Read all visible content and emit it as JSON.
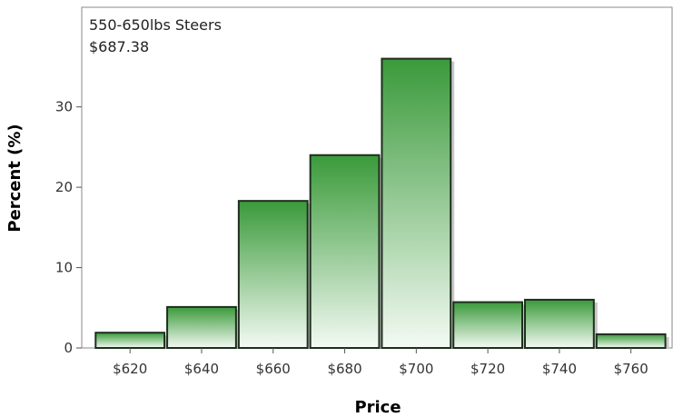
{
  "chart_data": {
    "type": "bar",
    "subtype": "histogram",
    "title": "",
    "xlabel": "Price",
    "ylabel": "Percent (%)",
    "inset": {
      "line1": "550-650lbs Steers",
      "line2": "$687.38"
    },
    "bins": [
      {
        "from": 610,
        "to": 630,
        "value": 1.9
      },
      {
        "from": 630,
        "to": 650,
        "value": 5.1
      },
      {
        "from": 650,
        "to": 670,
        "value": 18.3
      },
      {
        "from": 670,
        "to": 690,
        "value": 24.0
      },
      {
        "from": 690,
        "to": 710,
        "value": 36.0
      },
      {
        "from": 710,
        "to": 730,
        "value": 5.7
      },
      {
        "from": 730,
        "to": 750,
        "value": 6.0
      },
      {
        "from": 750,
        "to": 770,
        "value": 1.7
      }
    ],
    "x_ticks": [
      {
        "value": 620,
        "label": "$620"
      },
      {
        "value": 640,
        "label": "$640"
      },
      {
        "value": 660,
        "label": "$660"
      },
      {
        "value": 680,
        "label": "$680"
      },
      {
        "value": 700,
        "label": "$700"
      },
      {
        "value": 720,
        "label": "$720"
      },
      {
        "value": 740,
        "label": "$740"
      },
      {
        "value": 760,
        "label": "$760"
      }
    ],
    "y_ticks": [
      {
        "value": 0,
        "label": "0"
      },
      {
        "value": 10,
        "label": "10"
      },
      {
        "value": 20,
        "label": "20"
      },
      {
        "value": 30,
        "label": "30"
      }
    ],
    "xlim": [
      606.5,
      771.5
    ],
    "ylim": [
      0,
      42.4
    ],
    "grid": false,
    "colors": {
      "bar_top": "#3a9a3a",
      "bar_bottom": "#f4faf4",
      "bar_outline": "#1e2e1e",
      "shadow": "#c8c8c8",
      "frame": "#8a8a8a"
    }
  }
}
